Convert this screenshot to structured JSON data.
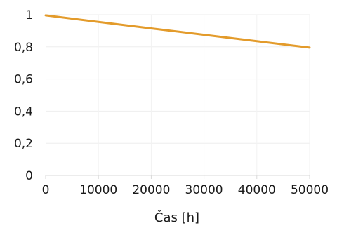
{
  "chart_data": {
    "type": "line",
    "title": "",
    "xlabel": "Čas [h]",
    "ylabel": "",
    "xlim": [
      0,
      50000
    ],
    "ylim": [
      0,
      1
    ],
    "x_ticks": [
      0,
      10000,
      20000,
      30000,
      40000,
      50000
    ],
    "x_tick_labels": [
      "0",
      "10000",
      "20000",
      "30000",
      "40000",
      "50000"
    ],
    "y_ticks": [
      0,
      0.2,
      0.4,
      0.6,
      0.8,
      1
    ],
    "y_tick_labels": [
      "0",
      "0,2",
      "0,4",
      "0,6",
      "0,8",
      "1"
    ],
    "grid": true,
    "series": [
      {
        "color": "#e39b2b",
        "x": [
          0,
          10000,
          20000,
          30000,
          40000,
          50000
        ],
        "y": [
          0.996,
          0.955,
          0.915,
          0.875,
          0.835,
          0.795
        ]
      }
    ]
  }
}
